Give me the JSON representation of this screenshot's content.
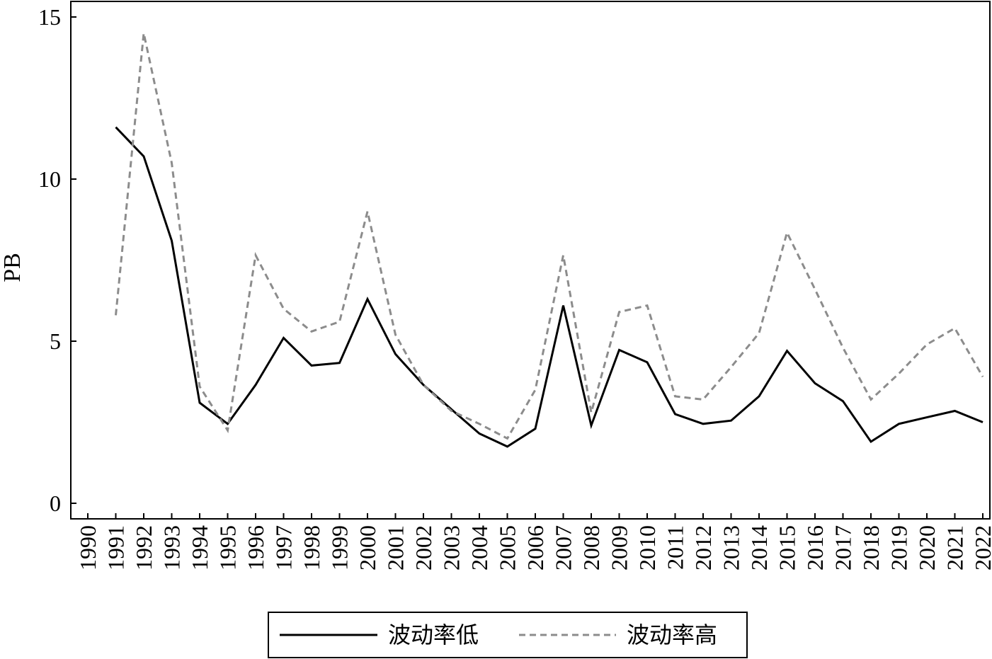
{
  "chart_data": {
    "type": "line",
    "title": "",
    "xlabel": "",
    "ylabel": "PB",
    "ylim": [
      -0.5,
      15.5
    ],
    "yticks": [
      0,
      5,
      10,
      15
    ],
    "grid": false,
    "legend_position": "bottom",
    "categories": [
      "1990",
      "1991",
      "1992",
      "1993",
      "1994",
      "1995",
      "1996",
      "1997",
      "1998",
      "1999",
      "2000",
      "2001",
      "2002",
      "2003",
      "2004",
      "2005",
      "2006",
      "2007",
      "2008",
      "2009",
      "2010",
      "2011",
      "2012",
      "2013",
      "2014",
      "2015",
      "2016",
      "2017",
      "2018",
      "2019",
      "2020",
      "2021",
      "2022"
    ],
    "series": [
      {
        "name": "波动率低",
        "style": "solid",
        "color": "#000000",
        "values": [
          null,
          11.6,
          10.7,
          8.1,
          3.1,
          2.45,
          3.65,
          5.1,
          4.25,
          4.33,
          6.3,
          4.6,
          3.65,
          2.9,
          2.15,
          1.75,
          2.3,
          6.1,
          2.4,
          4.73,
          4.35,
          2.75,
          2.45,
          2.55,
          3.3,
          4.7,
          3.7,
          3.15,
          1.9,
          2.45,
          2.65,
          2.85,
          2.5
        ]
      },
      {
        "name": "波动率高",
        "style": "dashed",
        "color": "#8c8c8c",
        "values": [
          null,
          5.8,
          14.5,
          10.5,
          3.6,
          2.25,
          7.65,
          6.0,
          5.3,
          5.6,
          9.0,
          5.2,
          3.65,
          2.85,
          2.45,
          2.0,
          3.5,
          7.65,
          2.8,
          5.9,
          6.1,
          3.3,
          3.2,
          4.2,
          5.25,
          8.35,
          6.6,
          4.8,
          3.2,
          4.0,
          4.9,
          5.4,
          3.9
        ]
      }
    ]
  }
}
